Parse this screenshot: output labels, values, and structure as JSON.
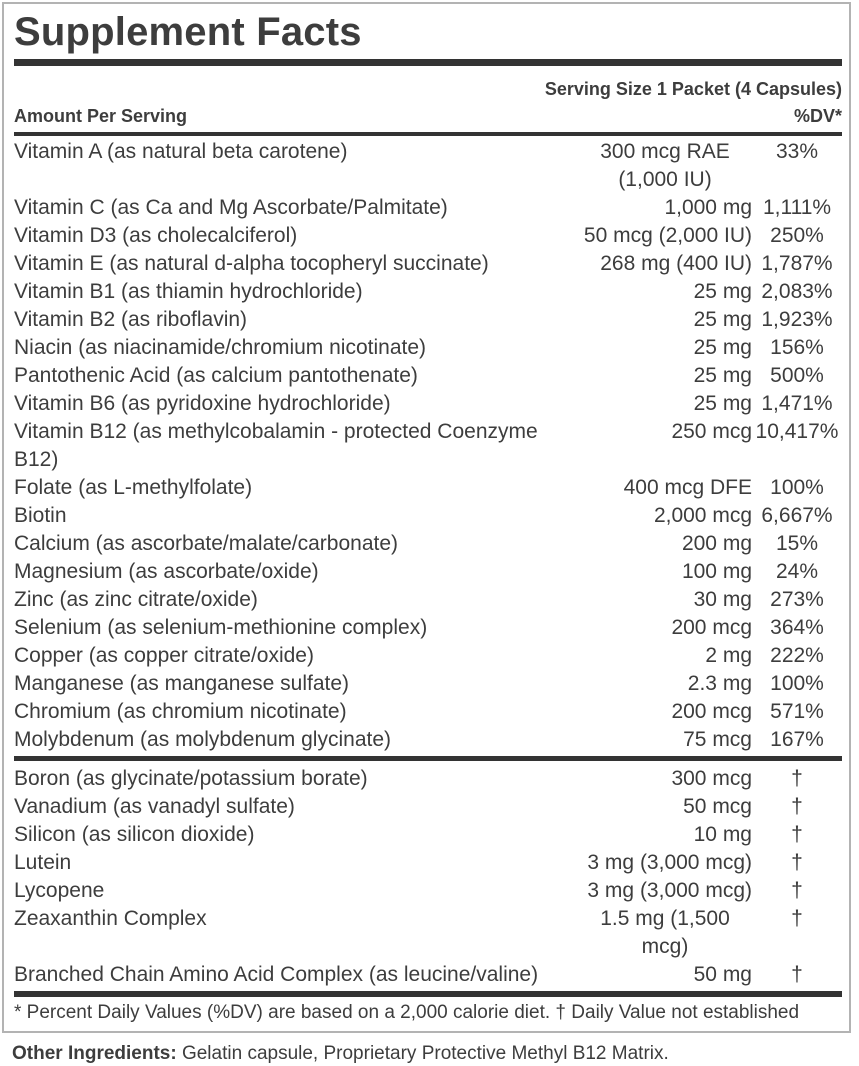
{
  "panel": {
    "title": "Supplement Facts",
    "serving_size": "Serving Size 1 Packet (4 Capsules)",
    "amount_header": "Amount Per Serving",
    "dv_header": "%DV*",
    "nutrients": [
      {
        "name": "Vitamin A (as natural beta carotene)",
        "amount": "300 mcg RAE (1,000 IU)",
        "dv": "33%"
      },
      {
        "name": "Vitamin C (as Ca and Mg Ascorbate/Palmitate)",
        "amount": "1,000 mg",
        "dv": "1,111%"
      },
      {
        "name": "Vitamin D3 (as cholecalciferol)",
        "amount": "50 mcg (2,000 IU)",
        "dv": "250%"
      },
      {
        "name": "Vitamin E (as natural d-alpha tocopheryl succinate)",
        "amount": "268 mg (400 IU)",
        "dv": "1,787%"
      },
      {
        "name": "Vitamin B1 (as thiamin hydrochloride)",
        "amount": "25 mg",
        "dv": "2,083%"
      },
      {
        "name": "Vitamin B2 (as riboflavin)",
        "amount": "25 mg",
        "dv": "1,923%"
      },
      {
        "name": "Niacin (as niacinamide/chromium nicotinate)",
        "amount": "25 mg",
        "dv": "156%"
      },
      {
        "name": "Pantothenic Acid (as calcium pantothenate)",
        "amount": "25 mg",
        "dv": "500%"
      },
      {
        "name": "Vitamin B6 (as pyridoxine hydrochloride)",
        "amount": "25 mg",
        "dv": "1,471%"
      },
      {
        "name": "Vitamin B12 (as methylcobalamin - protected Coenzyme B12)",
        "amount": "250 mcg",
        "dv": "10,417%"
      },
      {
        "name": "Folate (as L-methylfolate)",
        "amount": "400 mcg DFE",
        "dv": "100%"
      },
      {
        "name": "Biotin",
        "amount": "2,000 mcg",
        "dv": "6,667%"
      },
      {
        "name": "Calcium (as ascorbate/malate/carbonate)",
        "amount": "200 mg",
        "dv": "15%"
      },
      {
        "name": "Magnesium (as ascorbate/oxide)",
        "amount": "100 mg",
        "dv": "24%"
      },
      {
        "name": "Zinc (as zinc citrate/oxide)",
        "amount": "30 mg",
        "dv": "273%"
      },
      {
        "name": "Selenium (as selenium-methionine complex)",
        "amount": "200 mcg",
        "dv": "364%"
      },
      {
        "name": "Copper (as copper citrate/oxide)",
        "amount": "2 mg",
        "dv": "222%"
      },
      {
        "name": "Manganese (as manganese sulfate)",
        "amount": "2.3 mg",
        "dv": "100%"
      },
      {
        "name": "Chromium (as chromium nicotinate)",
        "amount": "200 mcg",
        "dv": "571%"
      },
      {
        "name": "Molybdenum (as molybdenum glycinate)",
        "amount": "75 mcg",
        "dv": "167%"
      }
    ],
    "secondary_nutrients": [
      {
        "name": "Boron (as glycinate/potassium borate)",
        "amount": "300 mcg",
        "dv": "†"
      },
      {
        "name": "Vanadium (as vanadyl sulfate)",
        "amount": "50 mcg",
        "dv": "†"
      },
      {
        "name": "Silicon (as silicon dioxide)",
        "amount": "10 mg",
        "dv": "†"
      },
      {
        "name": "Lutein",
        "amount": "3 mg (3,000 mcg)",
        "dv": "†"
      },
      {
        "name": "Lycopene",
        "amount": "3 mg (3,000 mcg)",
        "dv": "†"
      },
      {
        "name": "Zeaxanthin Complex",
        "amount": "1.5 mg (1,500 mcg)",
        "dv": "†"
      },
      {
        "name": "Branched Chain Amino Acid Complex (as leucine/valine)",
        "amount": "50 mg",
        "dv": "†"
      }
    ],
    "footnote": "* Percent Daily Values (%DV) are based on a 2,000 calorie diet. † Daily Value not established"
  },
  "footer": {
    "other_ingredients_label": "Other Ingredients:",
    "other_ingredients_text": " Gelatin capsule, Proprietary Protective Methyl B12 Matrix."
  },
  "colors": {
    "text": "#3d3d3d",
    "divider_bar": "#333333",
    "panel_border": "#b3b3b3",
    "background": "#ffffff"
  }
}
